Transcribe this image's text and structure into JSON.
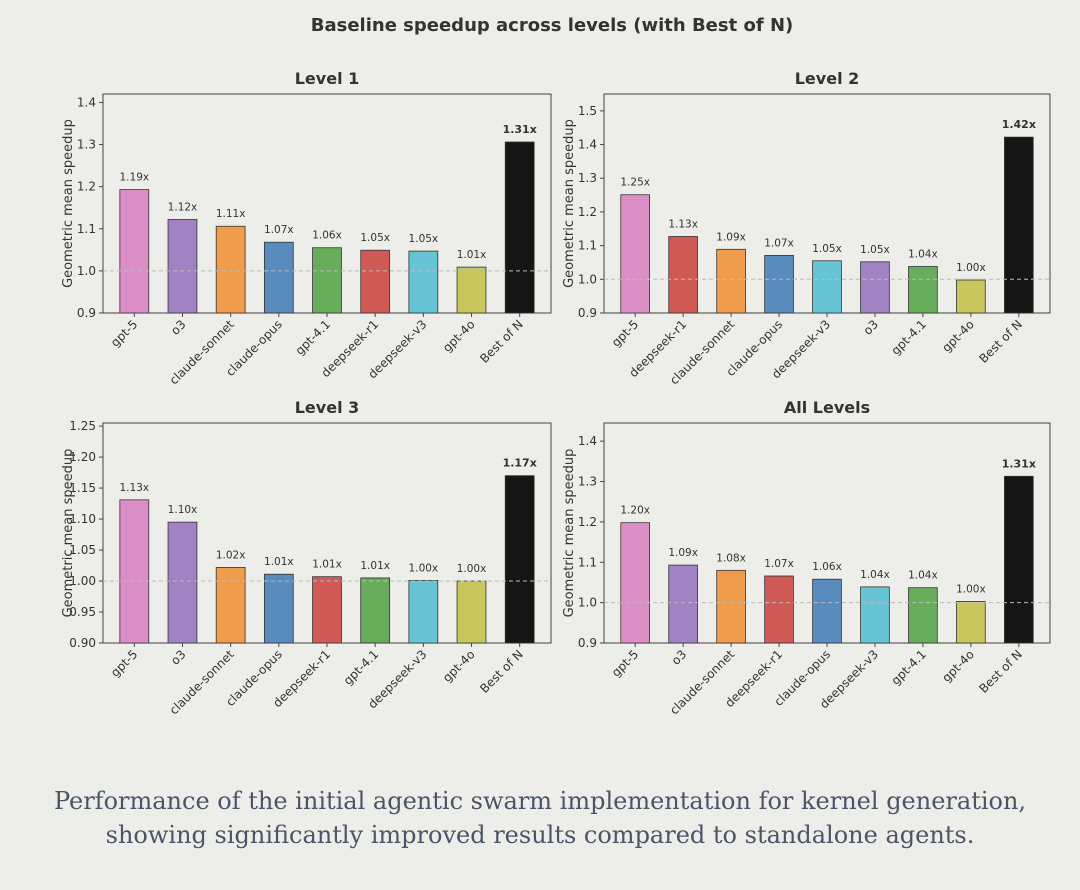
{
  "figure_title": "Baseline speedup across levels (with Best of N)",
  "caption": {
    "line1": "Performance of the initial agentic swarm implementation for kernel generation,",
    "line2": "showing significantly improved results compared to standalone agents."
  },
  "colors": {
    "gpt-5": "#dc8fc6",
    "o3": "#a183c4",
    "claude-sonnet": "#ef9c4c",
    "claude-opus": "#5a8bbf",
    "gpt-4.1": "#67ad5b",
    "deepseek-r1": "#d05a55",
    "deepseek-v3": "#66c4d4",
    "gpt-4o": "#c9c65e",
    "Best of N": "#151515"
  },
  "chart_data": [
    {
      "type": "bar",
      "title": "Level 1",
      "ylabel": "Geometric mean speedup",
      "xlabel": "",
      "ylim": [
        0.9,
        1.42
      ],
      "yticks": [
        "0.9",
        "1.0",
        "1.1",
        "1.2",
        "1.3",
        "1.4"
      ],
      "baseline": 1.0,
      "categories": [
        "gpt-5",
        "o3",
        "claude-sonnet",
        "claude-opus",
        "gpt-4.1",
        "deepseek-r1",
        "deepseek-v3",
        "gpt-4o",
        "Best of N"
      ],
      "values": [
        1.193,
        1.122,
        1.106,
        1.068,
        1.055,
        1.049,
        1.047,
        1.009,
        1.306
      ],
      "labels": [
        "1.19x",
        "1.12x",
        "1.11x",
        "1.07x",
        "1.06x",
        "1.05x",
        "1.05x",
        "1.01x",
        "1.31x"
      ]
    },
    {
      "type": "bar",
      "title": "Level 2",
      "ylabel": "Geometric mean speedup",
      "xlabel": "",
      "ylim": [
        0.9,
        1.55
      ],
      "yticks": [
        "0.9",
        "1.0",
        "1.1",
        "1.2",
        "1.3",
        "1.4",
        "1.5"
      ],
      "baseline": 1.0,
      "categories": [
        "gpt-5",
        "deepseek-r1",
        "claude-sonnet",
        "claude-opus",
        "deepseek-v3",
        "o3",
        "gpt-4.1",
        "gpt-4o",
        "Best of N"
      ],
      "values": [
        1.251,
        1.127,
        1.089,
        1.071,
        1.055,
        1.052,
        1.038,
        0.998,
        1.422
      ],
      "labels": [
        "1.25x",
        "1.13x",
        "1.09x",
        "1.07x",
        "1.05x",
        "1.05x",
        "1.04x",
        "1.00x",
        "1.42x"
      ]
    },
    {
      "type": "bar",
      "title": "Level 3",
      "ylabel": "Geometric mean speedup",
      "xlabel": "",
      "ylim": [
        0.9,
        1.255
      ],
      "yticks": [
        "0.90",
        "0.95",
        "1.00",
        "1.05",
        "1.10",
        "1.15",
        "1.20",
        "1.25"
      ],
      "baseline": 1.0,
      "categories": [
        "gpt-5",
        "o3",
        "claude-sonnet",
        "claude-opus",
        "deepseek-r1",
        "gpt-4.1",
        "deepseek-v3",
        "gpt-4o",
        "Best of N"
      ],
      "values": [
        1.131,
        1.095,
        1.022,
        1.011,
        1.007,
        1.005,
        1.001,
        1.0,
        1.17
      ],
      "labels": [
        "1.13x",
        "1.10x",
        "1.02x",
        "1.01x",
        "1.01x",
        "1.01x",
        "1.00x",
        "1.00x",
        "1.17x"
      ]
    },
    {
      "type": "bar",
      "title": "All Levels",
      "ylabel": "Geometric mean speedup",
      "xlabel": "",
      "ylim": [
        0.9,
        1.445
      ],
      "yticks": [
        "0.9",
        "1.0",
        "1.1",
        "1.2",
        "1.3",
        "1.4"
      ],
      "baseline": 1.0,
      "categories": [
        "gpt-5",
        "o3",
        "claude-sonnet",
        "deepseek-r1",
        "claude-opus",
        "deepseek-v3",
        "gpt-4.1",
        "gpt-4o",
        "Best of N"
      ],
      "values": [
        1.198,
        1.093,
        1.08,
        1.066,
        1.058,
        1.039,
        1.037,
        1.003,
        1.313
      ],
      "labels": [
        "1.20x",
        "1.09x",
        "1.08x",
        "1.07x",
        "1.06x",
        "1.04x",
        "1.04x",
        "1.00x",
        "1.31x"
      ]
    }
  ]
}
